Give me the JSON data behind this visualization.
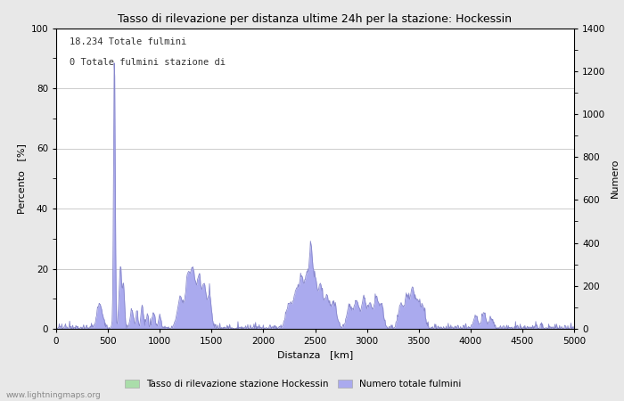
{
  "title": "Tasso di rilevazione per distanza ultime 24h per la stazione: Hockessin",
  "xlabel": "Distanza   [km]",
  "ylabel_left": "Percento   [%]",
  "ylabel_right": "Numero",
  "annotation_line1": "18.234 Totale fulmini",
  "annotation_line2": "0 Totale fulmini stazione di",
  "xlim": [
    0,
    5000
  ],
  "ylim_left": [
    0,
    100
  ],
  "ylim_right": [
    0,
    1400
  ],
  "xticks": [
    0,
    500,
    1000,
    1500,
    2000,
    2500,
    3000,
    3500,
    4000,
    4500,
    5000
  ],
  "yticks_left": [
    0,
    20,
    40,
    60,
    80,
    100
  ],
  "yticks_right": [
    0,
    200,
    400,
    600,
    800,
    1000,
    1200,
    1400
  ],
  "legend_label_green": "Tasso di rilevazione stazione Hockessin",
  "legend_label_blue": "Numero totale fulmini",
  "watermark": "www.lightningmaps.org",
  "fill_color_blue": "#aaaaee",
  "fill_color_green": "#aaddaa",
  "line_color_blue": "#8888cc",
  "background_color": "#e8e8e8",
  "plot_bg_color": "#ffffff",
  "grid_color": "#cccccc"
}
